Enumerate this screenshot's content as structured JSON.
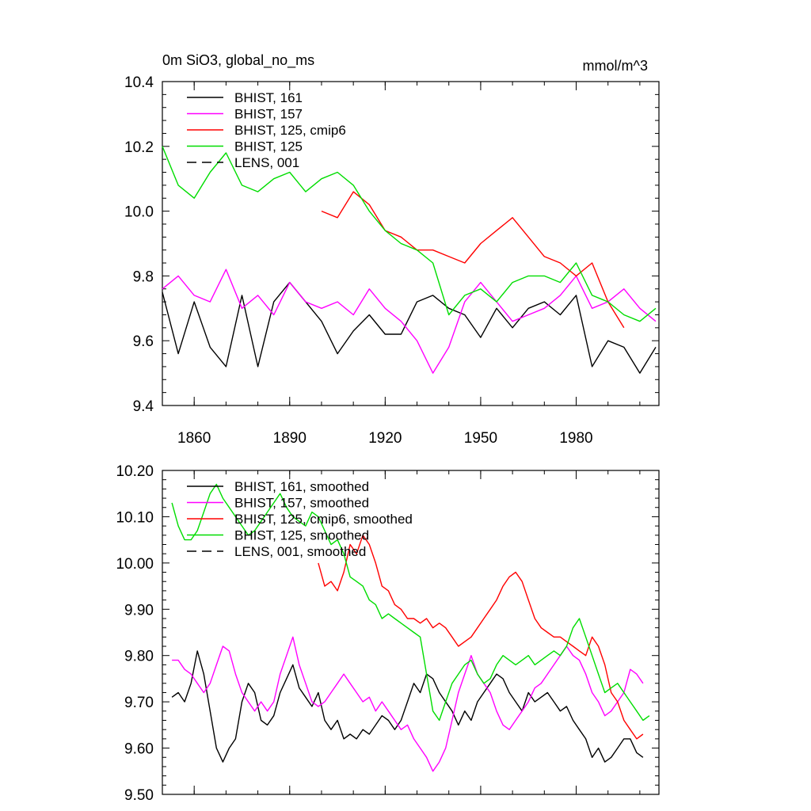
{
  "page": {
    "title": "0m SiO3, global_no_ms",
    "units": "mmol/m^3"
  },
  "chart_data": [
    {
      "type": "line",
      "title": "0m SiO3, global_no_ms",
      "units": "mmol/m^3",
      "xlim": [
        1850,
        2006
      ],
      "ylim": [
        9.4,
        10.4
      ],
      "x_ticks": [
        1860,
        1890,
        1920,
        1950,
        1980
      ],
      "x_tick_labels": [
        "1860",
        "1890",
        "1920",
        "1950",
        "1980"
      ],
      "y_ticks": [
        9.4,
        9.6,
        9.8,
        10.0,
        10.2,
        10.4
      ],
      "y_tick_labels": [
        "9.4",
        "9.6",
        "9.8",
        "10.0",
        "10.2",
        "10.4"
      ],
      "legend_position": "top-left",
      "series": [
        {
          "name": "BHIST, 161",
          "color": "#000000",
          "dash": "solid",
          "x": [
            1850,
            1855,
            1860,
            1865,
            1870,
            1875,
            1880,
            1885,
            1890,
            1895,
            1900,
            1905,
            1910,
            1915,
            1920,
            1925,
            1930,
            1935,
            1940,
            1945,
            1950,
            1955,
            1960,
            1965,
            1970,
            1975,
            1980,
            1985,
            1990,
            1995,
            2000,
            2005
          ],
          "y": [
            9.75,
            9.56,
            9.72,
            9.58,
            9.52,
            9.74,
            9.52,
            9.72,
            9.78,
            9.72,
            9.66,
            9.56,
            9.63,
            9.68,
            9.62,
            9.62,
            9.72,
            9.74,
            9.7,
            9.68,
            9.61,
            9.7,
            9.64,
            9.7,
            9.72,
            9.68,
            9.74,
            9.52,
            9.6,
            9.58,
            9.5,
            9.58
          ]
        },
        {
          "name": "BHIST, 157",
          "color": "#ff00ff",
          "dash": "solid",
          "x": [
            1850,
            1855,
            1860,
            1865,
            1870,
            1875,
            1880,
            1885,
            1890,
            1895,
            1900,
            1905,
            1910,
            1915,
            1920,
            1925,
            1930,
            1935,
            1940,
            1945,
            1950,
            1955,
            1960,
            1965,
            1970,
            1975,
            1980,
            1985,
            1990,
            1995,
            2000,
            2005
          ],
          "y": [
            9.76,
            9.8,
            9.74,
            9.72,
            9.82,
            9.7,
            9.74,
            9.68,
            9.78,
            9.72,
            9.7,
            9.72,
            9.68,
            9.76,
            9.7,
            9.66,
            9.6,
            9.5,
            9.58,
            9.72,
            9.78,
            9.72,
            9.66,
            9.68,
            9.7,
            9.74,
            9.8,
            9.7,
            9.72,
            9.76,
            9.7,
            9.66
          ]
        },
        {
          "name": "BHIST, 125, cmip6",
          "color": "#ff0000",
          "dash": "solid",
          "x": [
            1900,
            1905,
            1910,
            1915,
            1920,
            1925,
            1930,
            1935,
            1940,
            1945,
            1950,
            1955,
            1960,
            1965,
            1970,
            1975,
            1980,
            1985,
            1990,
            1995
          ],
          "y": [
            10.0,
            9.98,
            10.06,
            10.02,
            9.94,
            9.92,
            9.88,
            9.88,
            9.86,
            9.84,
            9.9,
            9.94,
            9.98,
            9.92,
            9.86,
            9.84,
            9.8,
            9.84,
            9.72,
            9.64
          ]
        },
        {
          "name": "BHIST, 125",
          "color": "#00dd00",
          "dash": "solid",
          "x": [
            1850,
            1855,
            1860,
            1865,
            1870,
            1875,
            1880,
            1885,
            1890,
            1895,
            1900,
            1905,
            1910,
            1915,
            1920,
            1925,
            1930,
            1935,
            1940,
            1945,
            1950,
            1955,
            1960,
            1965,
            1970,
            1975,
            1980,
            1985,
            1990,
            1995,
            2000,
            2005
          ],
          "y": [
            10.2,
            10.08,
            10.04,
            10.12,
            10.18,
            10.08,
            10.06,
            10.1,
            10.12,
            10.06,
            10.1,
            10.12,
            10.08,
            10.0,
            9.94,
            9.9,
            9.88,
            9.84,
            9.68,
            9.74,
            9.76,
            9.72,
            9.78,
            9.8,
            9.8,
            9.78,
            9.84,
            9.74,
            9.72,
            9.68,
            9.66,
            9.7
          ]
        },
        {
          "name": "LENS, 001",
          "color": "#000000",
          "dash": "dashed",
          "x": [],
          "y": []
        }
      ]
    },
    {
      "type": "line",
      "title": "",
      "xlim": [
        1850,
        2006
      ],
      "ylim": [
        9.5,
        10.2
      ],
      "x_ticks": [
        1860,
        1890,
        1920,
        1950,
        1980
      ],
      "y_ticks": [
        9.5,
        9.6,
        9.7,
        9.8,
        9.9,
        10.0,
        10.1,
        10.2
      ],
      "y_tick_labels": [
        "9.50",
        "9.60",
        "9.70",
        "9.80",
        "9.90",
        "10.00",
        "10.10",
        "10.20"
      ],
      "legend_position": "top-left",
      "series": [
        {
          "name": "BHIST, 161, smoothed",
          "color": "#000000",
          "dash": "solid",
          "x": [
            1853,
            1855,
            1857,
            1859,
            1861,
            1863,
            1865,
            1867,
            1869,
            1871,
            1873,
            1875,
            1877,
            1879,
            1881,
            1883,
            1885,
            1887,
            1889,
            1891,
            1893,
            1895,
            1897,
            1899,
            1901,
            1903,
            1905,
            1907,
            1909,
            1911,
            1913,
            1915,
            1917,
            1919,
            1921,
            1923,
            1925,
            1927,
            1929,
            1931,
            1933,
            1935,
            1937,
            1939,
            1941,
            1943,
            1945,
            1947,
            1949,
            1951,
            1953,
            1955,
            1957,
            1959,
            1961,
            1963,
            1965,
            1967,
            1969,
            1971,
            1973,
            1975,
            1977,
            1979,
            1981,
            1983,
            1985,
            1987,
            1989,
            1991,
            1993,
            1995,
            1997,
            1999,
            2001
          ],
          "y": [
            9.71,
            9.72,
            9.7,
            9.74,
            9.81,
            9.76,
            9.68,
            9.6,
            9.57,
            9.6,
            9.62,
            9.7,
            9.74,
            9.72,
            9.66,
            9.65,
            9.67,
            9.72,
            9.75,
            9.78,
            9.73,
            9.71,
            9.69,
            9.72,
            9.66,
            9.64,
            9.66,
            9.62,
            9.63,
            9.62,
            9.64,
            9.63,
            9.65,
            9.67,
            9.66,
            9.64,
            9.66,
            9.7,
            9.74,
            9.72,
            9.76,
            9.75,
            9.72,
            9.7,
            9.68,
            9.65,
            9.68,
            9.66,
            9.7,
            9.72,
            9.74,
            9.76,
            9.75,
            9.72,
            9.7,
            9.68,
            9.72,
            9.7,
            9.71,
            9.72,
            9.7,
            9.68,
            9.69,
            9.66,
            9.64,
            9.62,
            9.58,
            9.6,
            9.57,
            9.58,
            9.6,
            9.62,
            9.62,
            9.59,
            9.58
          ]
        },
        {
          "name": "BHIST, 157, smoothed",
          "color": "#ff00ff",
          "dash": "solid",
          "x": [
            1853,
            1855,
            1857,
            1859,
            1861,
            1863,
            1865,
            1867,
            1869,
            1871,
            1873,
            1875,
            1877,
            1879,
            1881,
            1883,
            1885,
            1887,
            1889,
            1891,
            1893,
            1895,
            1897,
            1899,
            1901,
            1903,
            1905,
            1907,
            1909,
            1911,
            1913,
            1915,
            1917,
            1919,
            1921,
            1923,
            1925,
            1927,
            1929,
            1931,
            1933,
            1935,
            1937,
            1939,
            1941,
            1943,
            1945,
            1947,
            1949,
            1951,
            1953,
            1955,
            1957,
            1959,
            1961,
            1963,
            1965,
            1967,
            1969,
            1971,
            1973,
            1975,
            1977,
            1979,
            1981,
            1983,
            1985,
            1987,
            1989,
            1991,
            1993,
            1995,
            1997,
            1999,
            2001
          ],
          "y": [
            9.79,
            9.79,
            9.77,
            9.76,
            9.74,
            9.72,
            9.74,
            9.78,
            9.82,
            9.81,
            9.76,
            9.72,
            9.7,
            9.68,
            9.7,
            9.68,
            9.7,
            9.76,
            9.8,
            9.84,
            9.78,
            9.74,
            9.7,
            9.69,
            9.7,
            9.72,
            9.74,
            9.76,
            9.74,
            9.72,
            9.7,
            9.71,
            9.68,
            9.7,
            9.68,
            9.66,
            9.64,
            9.65,
            9.62,
            9.6,
            9.58,
            9.55,
            9.57,
            9.6,
            9.66,
            9.72,
            9.76,
            9.8,
            9.76,
            9.74,
            9.72,
            9.68,
            9.65,
            9.64,
            9.66,
            9.68,
            9.7,
            9.73,
            9.74,
            9.76,
            9.78,
            9.8,
            9.82,
            9.8,
            9.79,
            9.76,
            9.72,
            9.7,
            9.67,
            9.68,
            9.7,
            9.72,
            9.77,
            9.76,
            9.74
          ]
        },
        {
          "name": "BHIST, 125, cmip6, smoothed",
          "color": "#ff0000",
          "dash": "solid",
          "x": [
            1899,
            1901,
            1903,
            1905,
            1907,
            1909,
            1911,
            1913,
            1915,
            1917,
            1919,
            1921,
            1923,
            1925,
            1927,
            1929,
            1931,
            1933,
            1935,
            1937,
            1939,
            1941,
            1943,
            1945,
            1947,
            1949,
            1951,
            1953,
            1955,
            1957,
            1959,
            1961,
            1963,
            1965,
            1967,
            1969,
            1971,
            1973,
            1975,
            1977,
            1979,
            1981,
            1983,
            1985,
            1987,
            1989,
            1991,
            1993,
            1995,
            1997,
            1999,
            2001
          ],
          "y": [
            10.0,
            9.95,
            9.96,
            9.94,
            9.98,
            10.04,
            10.02,
            10.06,
            10.04,
            10.0,
            9.95,
            9.94,
            9.91,
            9.9,
            9.88,
            9.88,
            9.87,
            9.88,
            9.86,
            9.87,
            9.86,
            9.84,
            9.82,
            9.83,
            9.84,
            9.86,
            9.88,
            9.9,
            9.92,
            9.95,
            9.97,
            9.98,
            9.96,
            9.92,
            9.88,
            9.86,
            9.85,
            9.84,
            9.84,
            9.83,
            9.82,
            9.81,
            9.8,
            9.84,
            9.82,
            9.78,
            9.72,
            9.7,
            9.66,
            9.64,
            9.62,
            9.63
          ]
        },
        {
          "name": "BHIST, 125, smoothed",
          "color": "#00dd00",
          "dash": "solid",
          "x": [
            1853,
            1855,
            1857,
            1859,
            1861,
            1863,
            1865,
            1867,
            1869,
            1871,
            1873,
            1875,
            1877,
            1879,
            1881,
            1883,
            1885,
            1887,
            1889,
            1891,
            1893,
            1895,
            1897,
            1899,
            1901,
            1903,
            1905,
            1907,
            1909,
            1911,
            1913,
            1915,
            1917,
            1919,
            1921,
            1923,
            1925,
            1927,
            1929,
            1931,
            1933,
            1935,
            1937,
            1939,
            1941,
            1943,
            1945,
            1947,
            1949,
            1951,
            1953,
            1955,
            1957,
            1959,
            1961,
            1963,
            1965,
            1967,
            1969,
            1971,
            1973,
            1975,
            1977,
            1979,
            1981,
            1983,
            1985,
            1987,
            1989,
            1991,
            1993,
            1995,
            1997,
            1999,
            2001,
            2003
          ],
          "y": [
            10.13,
            10.08,
            10.05,
            10.05,
            10.07,
            10.11,
            10.15,
            10.17,
            10.14,
            10.12,
            10.1,
            10.08,
            10.06,
            10.07,
            10.09,
            10.11,
            10.13,
            10.15,
            10.12,
            10.1,
            10.09,
            10.08,
            10.11,
            10.1,
            10.07,
            10.04,
            10.05,
            10.02,
            9.97,
            9.96,
            9.95,
            9.92,
            9.91,
            9.88,
            9.89,
            9.88,
            9.87,
            9.86,
            9.85,
            9.84,
            9.76,
            9.68,
            9.66,
            9.7,
            9.74,
            9.76,
            9.78,
            9.79,
            9.76,
            9.74,
            9.75,
            9.78,
            9.8,
            9.79,
            9.78,
            9.79,
            9.8,
            9.78,
            9.79,
            9.8,
            9.81,
            9.8,
            9.82,
            9.86,
            9.88,
            9.84,
            9.8,
            9.76,
            9.72,
            9.73,
            9.74,
            9.72,
            9.7,
            9.68,
            9.66,
            9.67
          ]
        },
        {
          "name": "LENS, 001, smoothed",
          "color": "#000000",
          "dash": "dashed",
          "x": [],
          "y": []
        }
      ]
    }
  ]
}
